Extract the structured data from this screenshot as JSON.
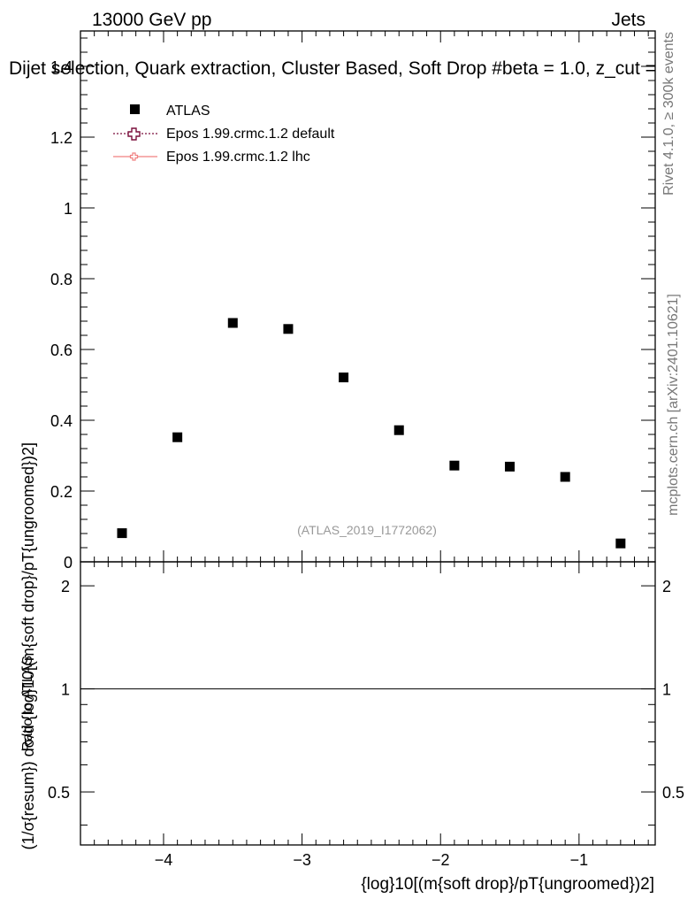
{
  "header": {
    "energy_label": "13000 GeV pp",
    "process_label": "Jets",
    "title": "Dijet selection, Quark extraction, Cluster Based, Soft Drop #beta = 1.0, z_cut ="
  },
  "side_labels": {
    "rivet": "Rivet 4.1.0, ≥ 300k events",
    "mcplots": "mcplots.cern.ch [arXiv:2401.10621]"
  },
  "watermark": "(ATLAS_2019_I1772062)",
  "axes": {
    "main_ylabel": "(1/σ{resum}) dσ/d {log}10[(m{soft drop}/pT{ungroomed})2]",
    "ratio_ylabel": "Ratio to ATLAS",
    "xlabel": "{log}10[(m{soft drop}/pT{ungroomed})2]"
  },
  "legend": [
    {
      "label": "ATLAS",
      "marker": "square",
      "color": "#000000"
    },
    {
      "label": "Epos 1.99.crmc.1.2 default",
      "marker": "open-cross",
      "color": "#7a0f3c"
    },
    {
      "label": "Epos 1.99.crmc.1.2 lhc",
      "marker": "small-cross",
      "color": "#f08080"
    }
  ],
  "chart_data": {
    "type": "scatter",
    "xlim": [
      -4.6,
      -0.45
    ],
    "main": {
      "ylim": [
        0,
        1.5
      ],
      "yticks": [
        0,
        0.2,
        0.4,
        0.6,
        0.8,
        1,
        1.2,
        1.4
      ],
      "ytick_labels": [
        "0",
        "0.2",
        "0.4",
        "0.6",
        "0.8",
        "1",
        "1.2",
        "1.4"
      ],
      "series": [
        {
          "name": "ATLAS",
          "x": [
            -4.3,
            -3.9,
            -3.5,
            -3.1,
            -2.7,
            -2.3,
            -1.9,
            -1.5,
            -1.1,
            -0.7
          ],
          "y": [
            0.081,
            0.352,
            0.675,
            0.658,
            0.521,
            0.372,
            0.272,
            0.269,
            0.24,
            0.052
          ]
        }
      ]
    },
    "ratio": {
      "ylim": [
        0.35,
        2.35
      ],
      "yticks": [
        0.5,
        1,
        2
      ],
      "ytick_labels": [
        "0.5",
        "1",
        "2"
      ],
      "reference": 1
    },
    "xticks": [
      -4,
      -3,
      -2,
      -1
    ],
    "xtick_labels": [
      "−4",
      "−3",
      "−2",
      "−1"
    ],
    "log_ratio_axis": true
  }
}
